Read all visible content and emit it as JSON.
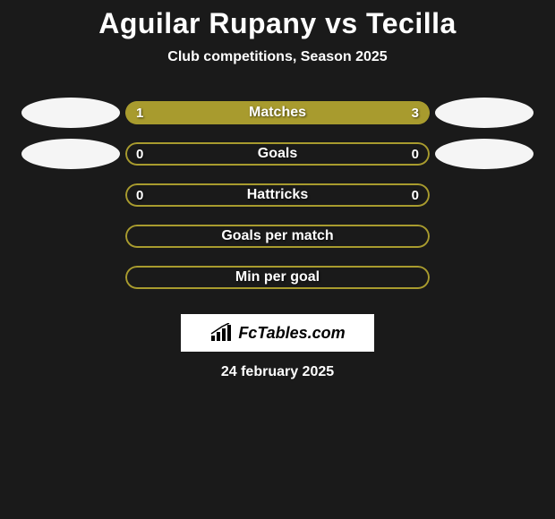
{
  "title": "Aguilar Rupany vs Tecilla",
  "subtitle": "Club competitions, Season 2025",
  "date": "24 february 2025",
  "logo_text": "FcTables.com",
  "colors": {
    "bar_fill": "#a89b2e",
    "bar_border": "#a89b2e",
    "bar_empty_bg": "transparent",
    "ellipse": "#f5f5f5",
    "background": "#1a1a1a",
    "text": "#ffffff"
  },
  "typography": {
    "title_fontsize": 32,
    "subtitle_fontsize": 16,
    "bar_label_fontsize": 16,
    "value_fontsize": 15,
    "date_fontsize": 16
  },
  "bars": [
    {
      "label": "Matches",
      "left_value": "1",
      "right_value": "3",
      "left_fill_pct": 25,
      "right_fill_pct": 75,
      "show_ellipses": true
    },
    {
      "label": "Goals",
      "left_value": "0",
      "right_value": "0",
      "left_fill_pct": 0,
      "right_fill_pct": 0,
      "show_ellipses": true
    },
    {
      "label": "Hattricks",
      "left_value": "0",
      "right_value": "0",
      "left_fill_pct": 0,
      "right_fill_pct": 0,
      "show_ellipses": false
    },
    {
      "label": "Goals per match",
      "left_value": "",
      "right_value": "",
      "left_fill_pct": 0,
      "right_fill_pct": 0,
      "show_ellipses": false
    },
    {
      "label": "Min per goal",
      "left_value": "",
      "right_value": "",
      "left_fill_pct": 0,
      "right_fill_pct": 0,
      "show_ellipses": false
    }
  ]
}
